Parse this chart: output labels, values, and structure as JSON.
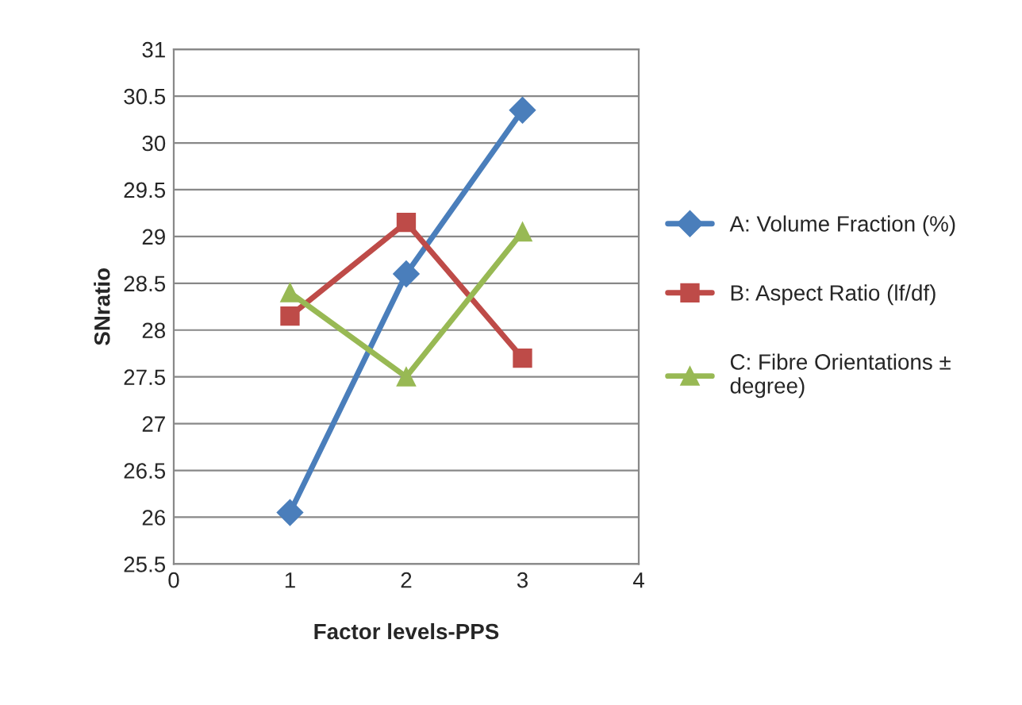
{
  "chart_data": {
    "type": "line",
    "xlabel": "Factor levels-PPS",
    "ylabel": "SNratio",
    "x": [
      1,
      2,
      3
    ],
    "series": [
      {
        "name": "A: Volume Fraction (%)",
        "color": "#4a7ebb",
        "marker": "diamond",
        "values": [
          26.05,
          28.6,
          30.35
        ]
      },
      {
        "name": "B: Aspect Ratio (lf/df)",
        "color": "#be4b48",
        "marker": "square",
        "values": [
          28.15,
          29.15,
          27.7
        ]
      },
      {
        "name": "C: Fibre Orientations ± degree)",
        "color": "#98b954",
        "marker": "triangle",
        "values": [
          28.4,
          27.5,
          29.05
        ]
      }
    ],
    "xlim": [
      0,
      4
    ],
    "xticks": [
      0,
      1,
      2,
      3,
      4
    ],
    "ylim": [
      25.5,
      31
    ],
    "yticks": [
      25.5,
      26,
      26.5,
      27,
      27.5,
      28,
      28.5,
      29,
      29.5,
      30,
      30.5,
      31
    ],
    "grid": "y",
    "legend": "right",
    "line_style": "solid"
  }
}
